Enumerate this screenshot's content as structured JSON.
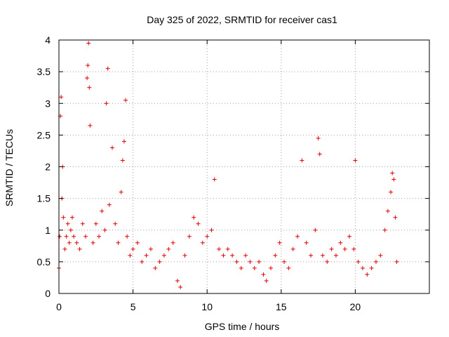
{
  "chart_data": {
    "type": "scatter",
    "title": "Day 325 of 2022, SRMTID for receiver cas1",
    "xlabel": "GPS time / hours",
    "ylabel": "SRMTID / TECUs",
    "xlim": [
      0,
      25
    ],
    "ylim": [
      0,
      4
    ],
    "xticks": [
      0,
      5,
      10,
      15,
      20
    ],
    "xtick_labels": [
      "0",
      "5",
      "10",
      "15",
      "20"
    ],
    "yticks": [
      0,
      0.5,
      1,
      1.5,
      2,
      2.5,
      3,
      3.5,
      4
    ],
    "ytick_labels": [
      "0",
      "0.5",
      "1",
      "1.5",
      "2",
      "2.5",
      "3",
      "3.5",
      "4"
    ],
    "grid": true,
    "marker": "+",
    "marker_color": "#e00000",
    "series": [
      {
        "name": "cas1",
        "x": [
          0.0,
          0.05,
          0.1,
          0.15,
          0.2,
          0.25,
          0.3,
          0.4,
          0.5,
          0.6,
          0.7,
          0.8,
          0.9,
          1.0,
          1.2,
          1.4,
          1.6,
          1.8,
          1.9,
          1.95,
          2.0,
          2.05,
          2.1,
          2.3,
          2.5,
          2.7,
          2.9,
          3.1,
          3.2,
          3.3,
          3.4,
          3.6,
          3.8,
          4.0,
          4.2,
          4.3,
          4.4,
          4.5,
          4.6,
          4.8,
          5.0,
          5.3,
          5.6,
          5.9,
          6.2,
          6.5,
          6.8,
          7.1,
          7.4,
          7.7,
          8.0,
          8.2,
          8.5,
          8.8,
          9.1,
          9.4,
          9.7,
          10.0,
          10.3,
          10.5,
          10.8,
          11.1,
          11.4,
          11.7,
          12.0,
          12.3,
          12.6,
          12.9,
          13.2,
          13.5,
          13.8,
          14.0,
          14.3,
          14.6,
          14.9,
          15.2,
          15.5,
          15.8,
          16.1,
          16.4,
          16.7,
          17.0,
          17.3,
          17.5,
          17.6,
          17.8,
          18.1,
          18.4,
          18.7,
          19.0,
          19.3,
          19.6,
          19.9,
          20.0,
          20.2,
          20.5,
          20.8,
          21.1,
          21.4,
          21.7,
          22.0,
          22.2,
          22.4,
          22.5,
          22.6,
          22.7,
          22.8
        ],
        "y": [
          0.4,
          0.9,
          2.8,
          3.1,
          1.5,
          2.0,
          1.2,
          0.7,
          0.9,
          1.1,
          0.8,
          1.0,
          1.2,
          0.9,
          0.8,
          0.7,
          1.1,
          0.9,
          3.4,
          3.6,
          3.95,
          3.25,
          2.65,
          0.8,
          1.1,
          0.9,
          1.3,
          1.0,
          3.0,
          3.55,
          1.4,
          2.3,
          1.1,
          0.8,
          1.6,
          2.1,
          2.4,
          3.05,
          0.9,
          0.6,
          0.7,
          0.8,
          0.5,
          0.6,
          0.7,
          0.4,
          0.5,
          0.6,
          0.7,
          0.8,
          0.2,
          0.1,
          0.6,
          0.9,
          1.2,
          1.1,
          0.8,
          0.9,
          1.0,
          1.8,
          0.7,
          0.6,
          0.7,
          0.6,
          0.5,
          0.4,
          0.6,
          0.5,
          0.4,
          0.5,
          0.3,
          0.2,
          0.4,
          0.6,
          0.8,
          0.5,
          0.4,
          0.7,
          0.9,
          2.1,
          0.8,
          0.6,
          1.0,
          2.45,
          2.2,
          0.6,
          0.5,
          0.7,
          0.6,
          0.8,
          0.7,
          0.9,
          0.7,
          2.1,
          0.5,
          0.4,
          0.3,
          0.4,
          0.5,
          0.6,
          1.0,
          1.3,
          1.6,
          1.9,
          1.8,
          1.2,
          0.5
        ]
      }
    ]
  }
}
